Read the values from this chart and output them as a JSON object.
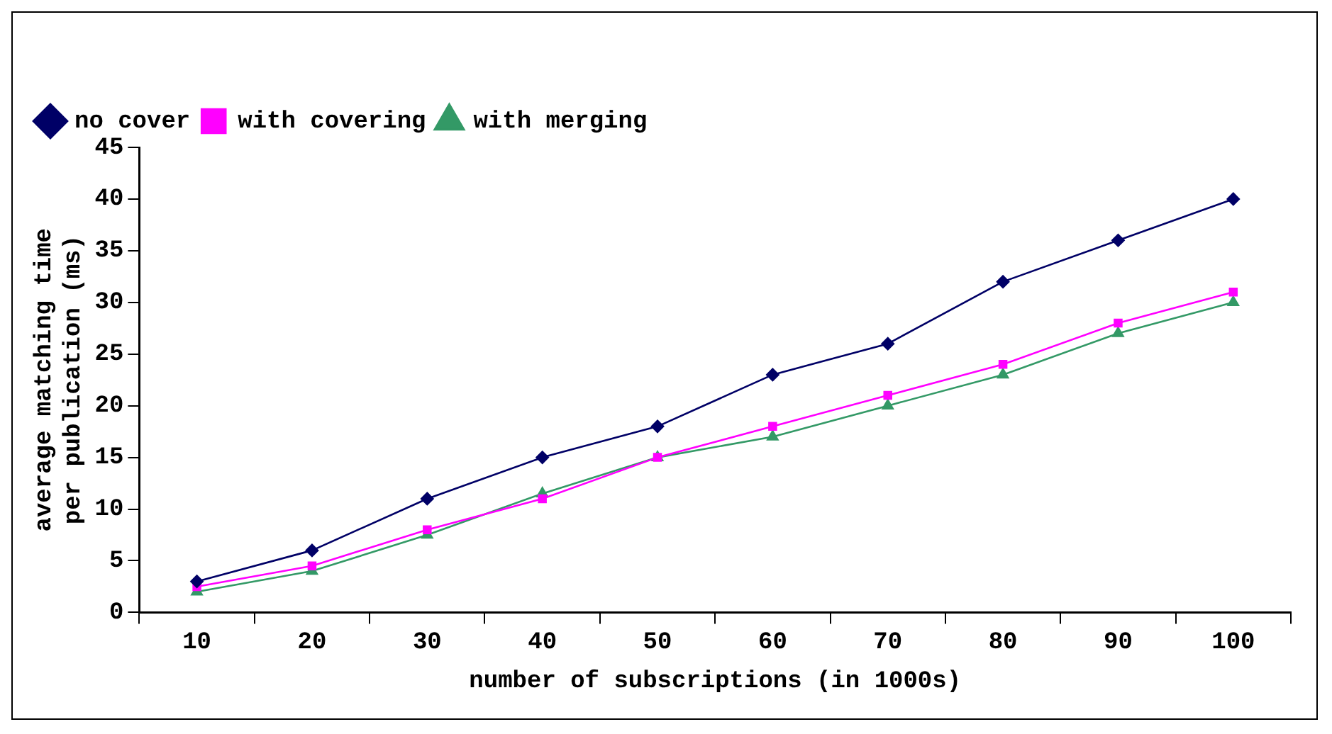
{
  "chart_data": {
    "type": "line",
    "xlabel": "number of subscriptions (in 1000s)",
    "ylabel": "average matching time\nper publication (ms)",
    "categories": [
      "10",
      "20",
      "30",
      "40",
      "50",
      "60",
      "70",
      "80",
      "90",
      "100"
    ],
    "ylim": [
      0,
      45
    ],
    "yticks": [
      0,
      5,
      10,
      15,
      20,
      25,
      30,
      35,
      40,
      45
    ],
    "grid": false,
    "legend": "top left",
    "series": [
      {
        "name": "no cover",
        "color": "#000066",
        "marker": "diamond",
        "values": [
          3,
          6,
          11,
          15,
          18,
          23,
          26,
          32,
          36,
          40
        ]
      },
      {
        "name": "with covering",
        "color": "#ff00ff",
        "marker": "square",
        "values": [
          2.5,
          4.5,
          8,
          11,
          15,
          18,
          21,
          24,
          28,
          31
        ]
      },
      {
        "name": "with merging",
        "color": "#339966",
        "marker": "triangle",
        "values": [
          2,
          4,
          7.5,
          11.5,
          15,
          17,
          20,
          23,
          27,
          30
        ]
      }
    ]
  }
}
